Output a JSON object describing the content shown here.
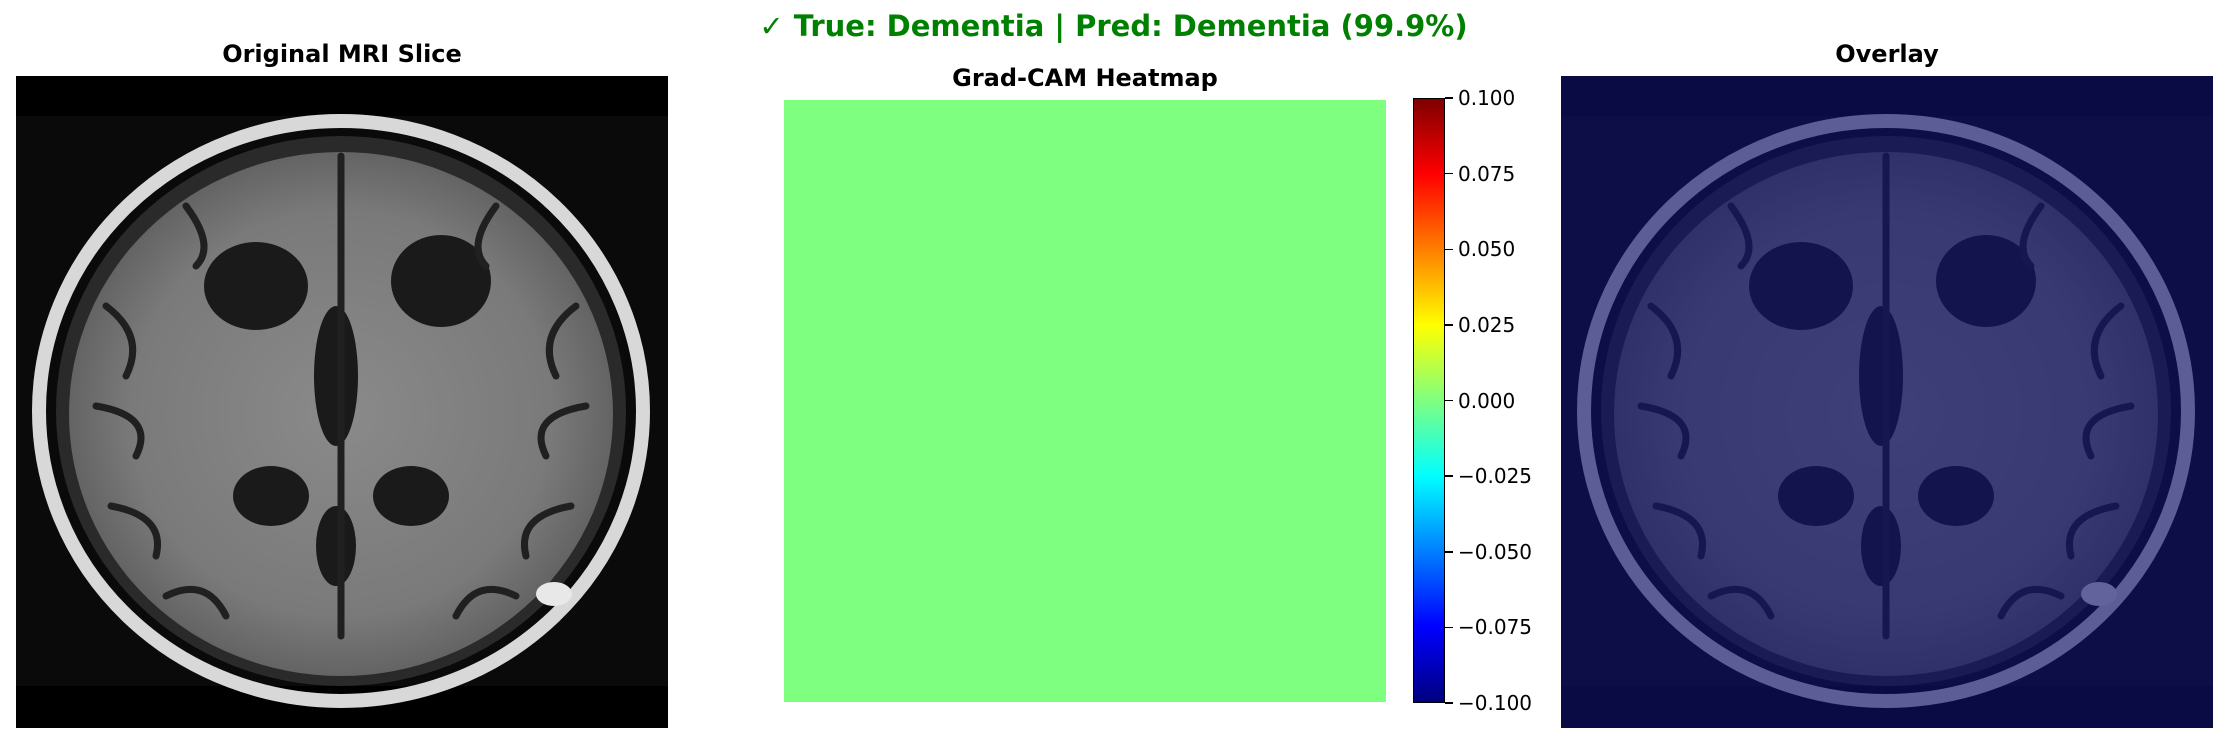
{
  "figure": {
    "suptitle": "✓ True: Dementia | Pred: Dementia (99.9%)",
    "suptitle_color": "#008000"
  },
  "panels": {
    "original": {
      "title": "Original MRI Slice"
    },
    "heatmap": {
      "title": "Grad-CAM Heatmap"
    },
    "overlay": {
      "title": "Overlay"
    }
  },
  "chart_data": {
    "type": "heatmap",
    "title": "Grad-CAM Heatmap",
    "value": 0.0,
    "colormap": "jet",
    "uniform_color": "#7fff7f",
    "colorbar": {
      "range": [
        -0.1,
        0.1
      ],
      "ticks": [
        0.1,
        0.075,
        0.05,
        0.025,
        0.0,
        -0.025,
        -0.05,
        -0.075,
        -0.1
      ],
      "tick_labels": [
        "0.100",
        "0.075",
        "0.050",
        "0.025",
        "0.000",
        "−0.025",
        "−0.050",
        "−0.075",
        "−0.100"
      ]
    },
    "grid": false
  },
  "overlay_tint": "#10106e"
}
